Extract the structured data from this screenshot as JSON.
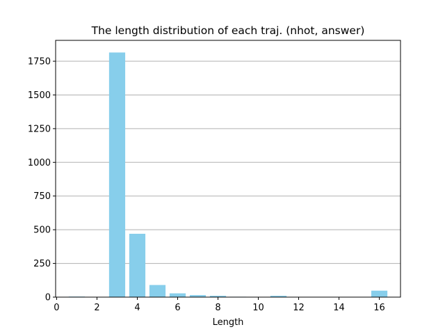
{
  "chart_data": {
    "type": "bar",
    "title": "The length distribution of each traj. (nhot, answer)",
    "xlabel": "Length",
    "ylabel": "",
    "x": [
      1,
      3,
      4,
      5,
      6,
      7,
      8,
      9,
      11,
      16
    ],
    "values": [
      4,
      1815,
      470,
      90,
      28,
      15,
      10,
      3,
      10,
      48
    ],
    "xlim": [
      -0.05,
      17.05
    ],
    "ylim": [
      0,
      1905
    ],
    "xticks": [
      0,
      2,
      4,
      6,
      8,
      10,
      12,
      14,
      16
    ],
    "yticks": [
      0,
      250,
      500,
      750,
      1000,
      1250,
      1500,
      1750
    ],
    "bar_width": 0.8,
    "grid": "y",
    "bar_color": "#87ceeb",
    "grid_color": "#b0b0b0"
  }
}
